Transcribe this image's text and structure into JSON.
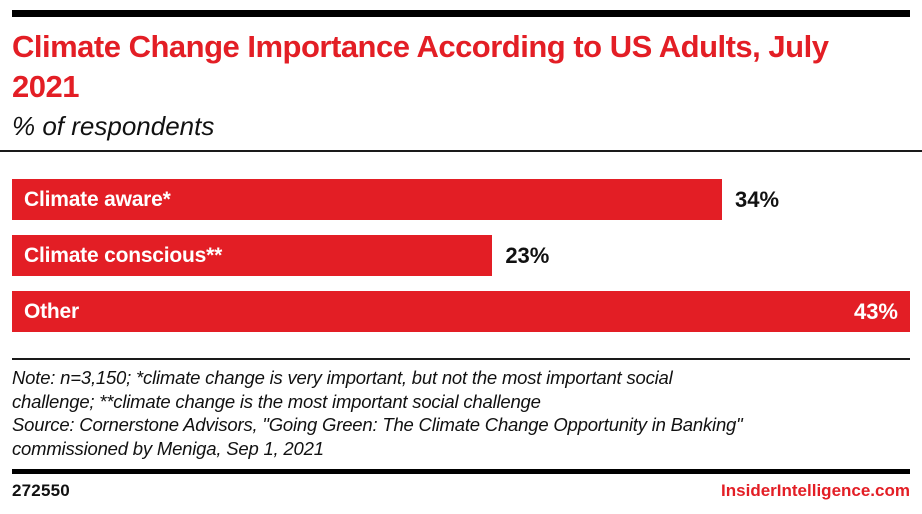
{
  "colors": {
    "accent_red": "#e31e25",
    "text_black": "#111111",
    "bar_text_white": "#ffffff"
  },
  "header": {
    "title": "Climate Change Importance According to US Adults, July 2021",
    "subtitle": "% of respondents"
  },
  "chart_data": {
    "type": "bar",
    "orientation": "horizontal",
    "title": "Climate Change Importance According to US Adults, July 2021",
    "unit": "% of respondents",
    "categories": [
      "Climate aware*",
      "Climate conscious**",
      "Other"
    ],
    "values": [
      34,
      23,
      43
    ],
    "value_suffix": "%",
    "xlabel": "",
    "ylabel": "",
    "xlim": [
      0,
      43
    ],
    "grid": false,
    "legend": "none",
    "bar_color": "#e31e25"
  },
  "notes": {
    "lines": [
      "Note: n=3,150; *climate change is very important, but not the most important social",
      "challenge; **climate change is the most important social challenge",
      "Source: Cornerstone Advisors, \"Going Green: The Climate Change Opportunity in Banking\"",
      "commissioned by Meniga, Sep 1, 2021"
    ]
  },
  "footer": {
    "chart_id": "272550",
    "site": "InsiderIntelligence.com"
  }
}
